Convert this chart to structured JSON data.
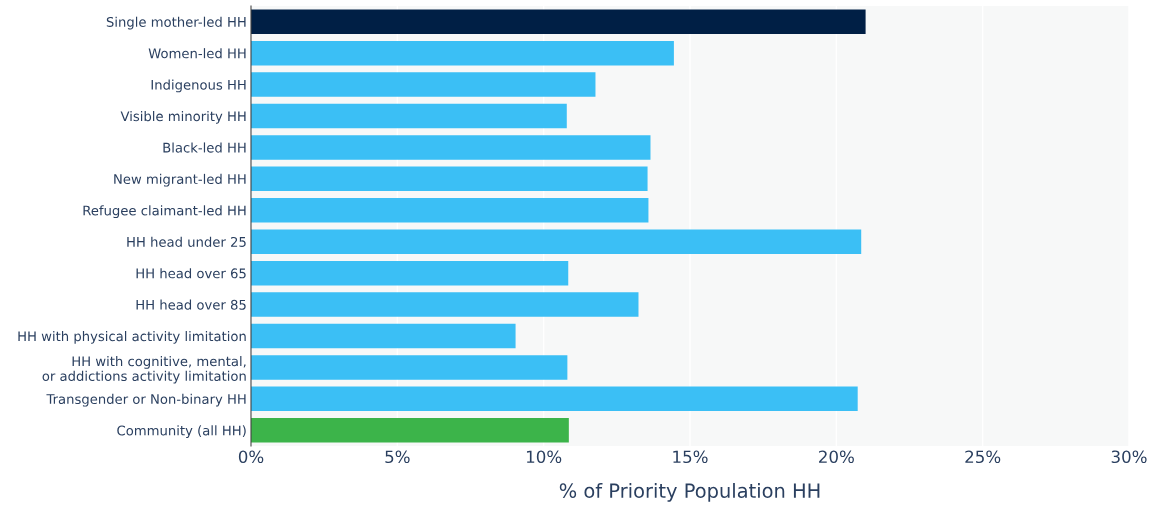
{
  "chart_data": {
    "type": "bar",
    "orientation": "horizontal",
    "xlabel": "% of Priority Population HH",
    "categories": [
      "Single mother-led HH",
      "Women-led HH",
      "Indigenous HH",
      "Visible minority HH",
      "Black-led HH",
      "New migrant-led HH",
      "Refugee claimant-led HH",
      "HH head under 25",
      "HH head over 65",
      "HH head over 85",
      "HH with physical activity limitation",
      "HH with cognitive, mental,\nor addictions activity limitation",
      "Transgender or Non-binary HH",
      "Community (all HH)"
    ],
    "values": [
      21.0,
      14.45,
      11.77,
      10.79,
      13.65,
      13.55,
      13.58,
      20.85,
      10.84,
      13.24,
      9.04,
      10.81,
      20.73,
      10.86
    ],
    "colors": [
      "#001f45",
      "#3bbff5",
      "#3bbff5",
      "#3bbff5",
      "#3bbff5",
      "#3bbff5",
      "#3bbff5",
      "#3bbff5",
      "#3bbff5",
      "#3bbff5",
      "#3bbff5",
      "#3bbff5",
      "#3bbff5",
      "#3cb44a"
    ],
    "xlim": [
      0,
      30
    ],
    "xticks": [
      {
        "value": 0,
        "label": "0%"
      },
      {
        "value": 5,
        "label": "5%"
      },
      {
        "value": 10,
        "label": "10%"
      },
      {
        "value": 15,
        "label": "15%"
      },
      {
        "value": 20,
        "label": "20%"
      },
      {
        "value": 25,
        "label": "25%"
      },
      {
        "value": 30,
        "label": "30%"
      }
    ],
    "grid": "x"
  }
}
